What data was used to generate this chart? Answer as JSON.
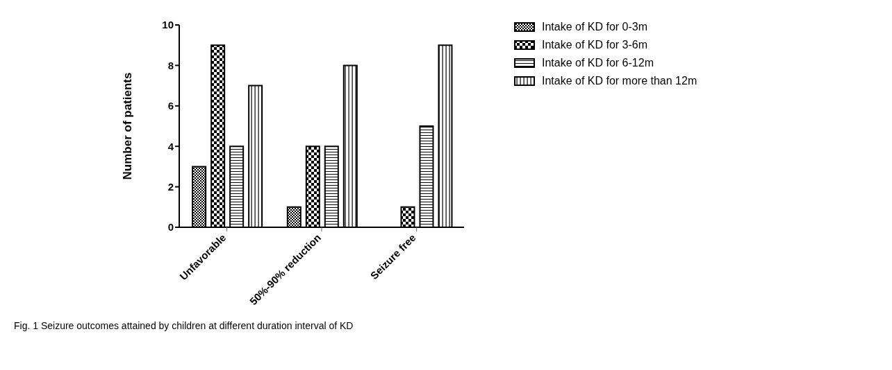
{
  "chart_data": {
    "type": "bar",
    "ylabel": "Number of patients",
    "categories": [
      "Unfavorable",
      "50%-90% reduction",
      "Seizure free"
    ],
    "series": [
      {
        "name": "Intake of KD for 0-3m",
        "color": "#000000",
        "values": [
          3,
          1,
          0
        ]
      },
      {
        "name": "Intake of KD for 3-6m",
        "color": "#000000",
        "values": [
          9,
          4,
          1
        ]
      },
      {
        "name": "Intake of KD for 6-12m",
        "color": "#000000",
        "values": [
          4,
          4,
          5
        ]
      },
      {
        "name": "Intake of KD for more than 12m",
        "color": "#000000",
        "values": [
          7,
          8,
          9
        ]
      }
    ],
    "ylim": [
      0,
      10
    ],
    "yticks": [
      0,
      2,
      4,
      6,
      8,
      10
    ],
    "legend": "top right",
    "annotations": [
      "Fig. 1 Seizure outcomes attained by children at different duration interval of KD"
    ]
  }
}
